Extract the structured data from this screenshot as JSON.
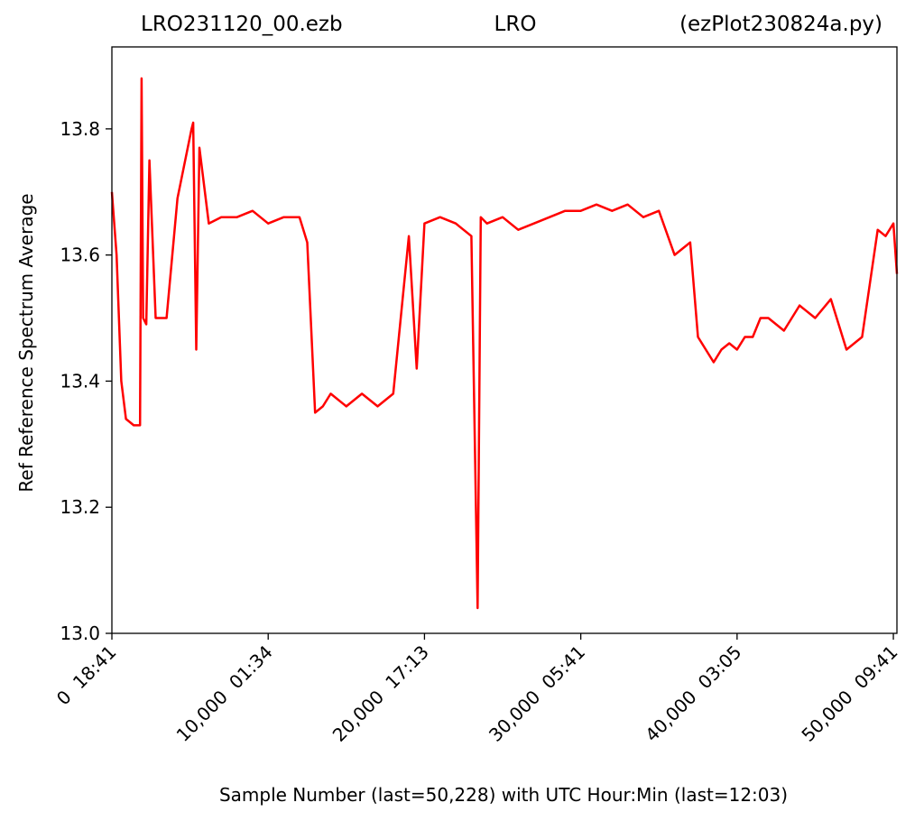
{
  "title": {
    "left": "LRO231120_00.ezb",
    "center": "LRO",
    "right": "(ezPlot230824a.py)"
  },
  "chart_data": {
    "type": "line",
    "xlabel": "Sample Number (last=50,228) with UTC Hour:Min (last=12:03)",
    "ylabel": "Ref Reference Spectrum Average",
    "xlim": [
      0,
      50228
    ],
    "ylim": [
      13.0,
      13.93
    ],
    "x_ticks": [
      0,
      10000,
      20000,
      30000,
      40000,
      50000
    ],
    "x_tick_labels": [
      "0  18:41",
      "10,000  01:34",
      "20,000  17:13",
      "30,000  05:41",
      "40,000  03:05",
      "50,000  09:41"
    ],
    "y_ticks": [
      13.0,
      13.2,
      13.4,
      13.6,
      13.8
    ],
    "y_tick_labels": [
      "13.0",
      "13.2",
      "13.4",
      "13.6",
      "13.8"
    ],
    "grid": false,
    "series": [
      {
        "color": "#ff0000",
        "x": [
          0,
          300,
          600,
          900,
          1400,
          1800,
          1900,
          2000,
          2200,
          2400,
          2800,
          3300,
          3500,
          4200,
          5100,
          5200,
          5400,
          5600,
          6200,
          7000,
          7400,
          8000,
          9000,
          10000,
          11000,
          12000,
          12500,
          13000,
          13500,
          14000,
          15000,
          16000,
          17000,
          18000,
          19000,
          19500,
          20000,
          21000,
          22000,
          22500,
          23000,
          23400,
          23600,
          24000,
          25000,
          26000,
          27000,
          28000,
          29000,
          30000,
          31000,
          32000,
          33000,
          34000,
          35000,
          36000,
          37000,
          37500,
          38000,
          38500,
          39000,
          39500,
          40000,
          40500,
          41000,
          41500,
          42000,
          43000,
          44000,
          45000,
          46000,
          47000,
          48000,
          49000,
          49500,
          50000,
          50228
        ],
        "y": [
          13.7,
          13.6,
          13.4,
          13.34,
          13.33,
          13.33,
          13.88,
          13.5,
          13.49,
          13.75,
          13.5,
          13.5,
          13.5,
          13.69,
          13.8,
          13.81,
          13.45,
          13.77,
          13.65,
          13.66,
          13.66,
          13.66,
          13.67,
          13.65,
          13.66,
          13.66,
          13.62,
          13.35,
          13.36,
          13.38,
          13.36,
          13.38,
          13.36,
          13.38,
          13.63,
          13.42,
          13.65,
          13.66,
          13.65,
          13.64,
          13.63,
          13.04,
          13.66,
          13.65,
          13.66,
          13.64,
          13.65,
          13.66,
          13.67,
          13.67,
          13.68,
          13.67,
          13.68,
          13.66,
          13.67,
          13.6,
          13.62,
          13.47,
          13.45,
          13.43,
          13.45,
          13.46,
          13.45,
          13.47,
          13.47,
          13.5,
          13.5,
          13.48,
          13.52,
          13.5,
          13.53,
          13.45,
          13.47,
          13.64,
          13.63,
          13.65,
          13.57
        ]
      }
    ]
  }
}
